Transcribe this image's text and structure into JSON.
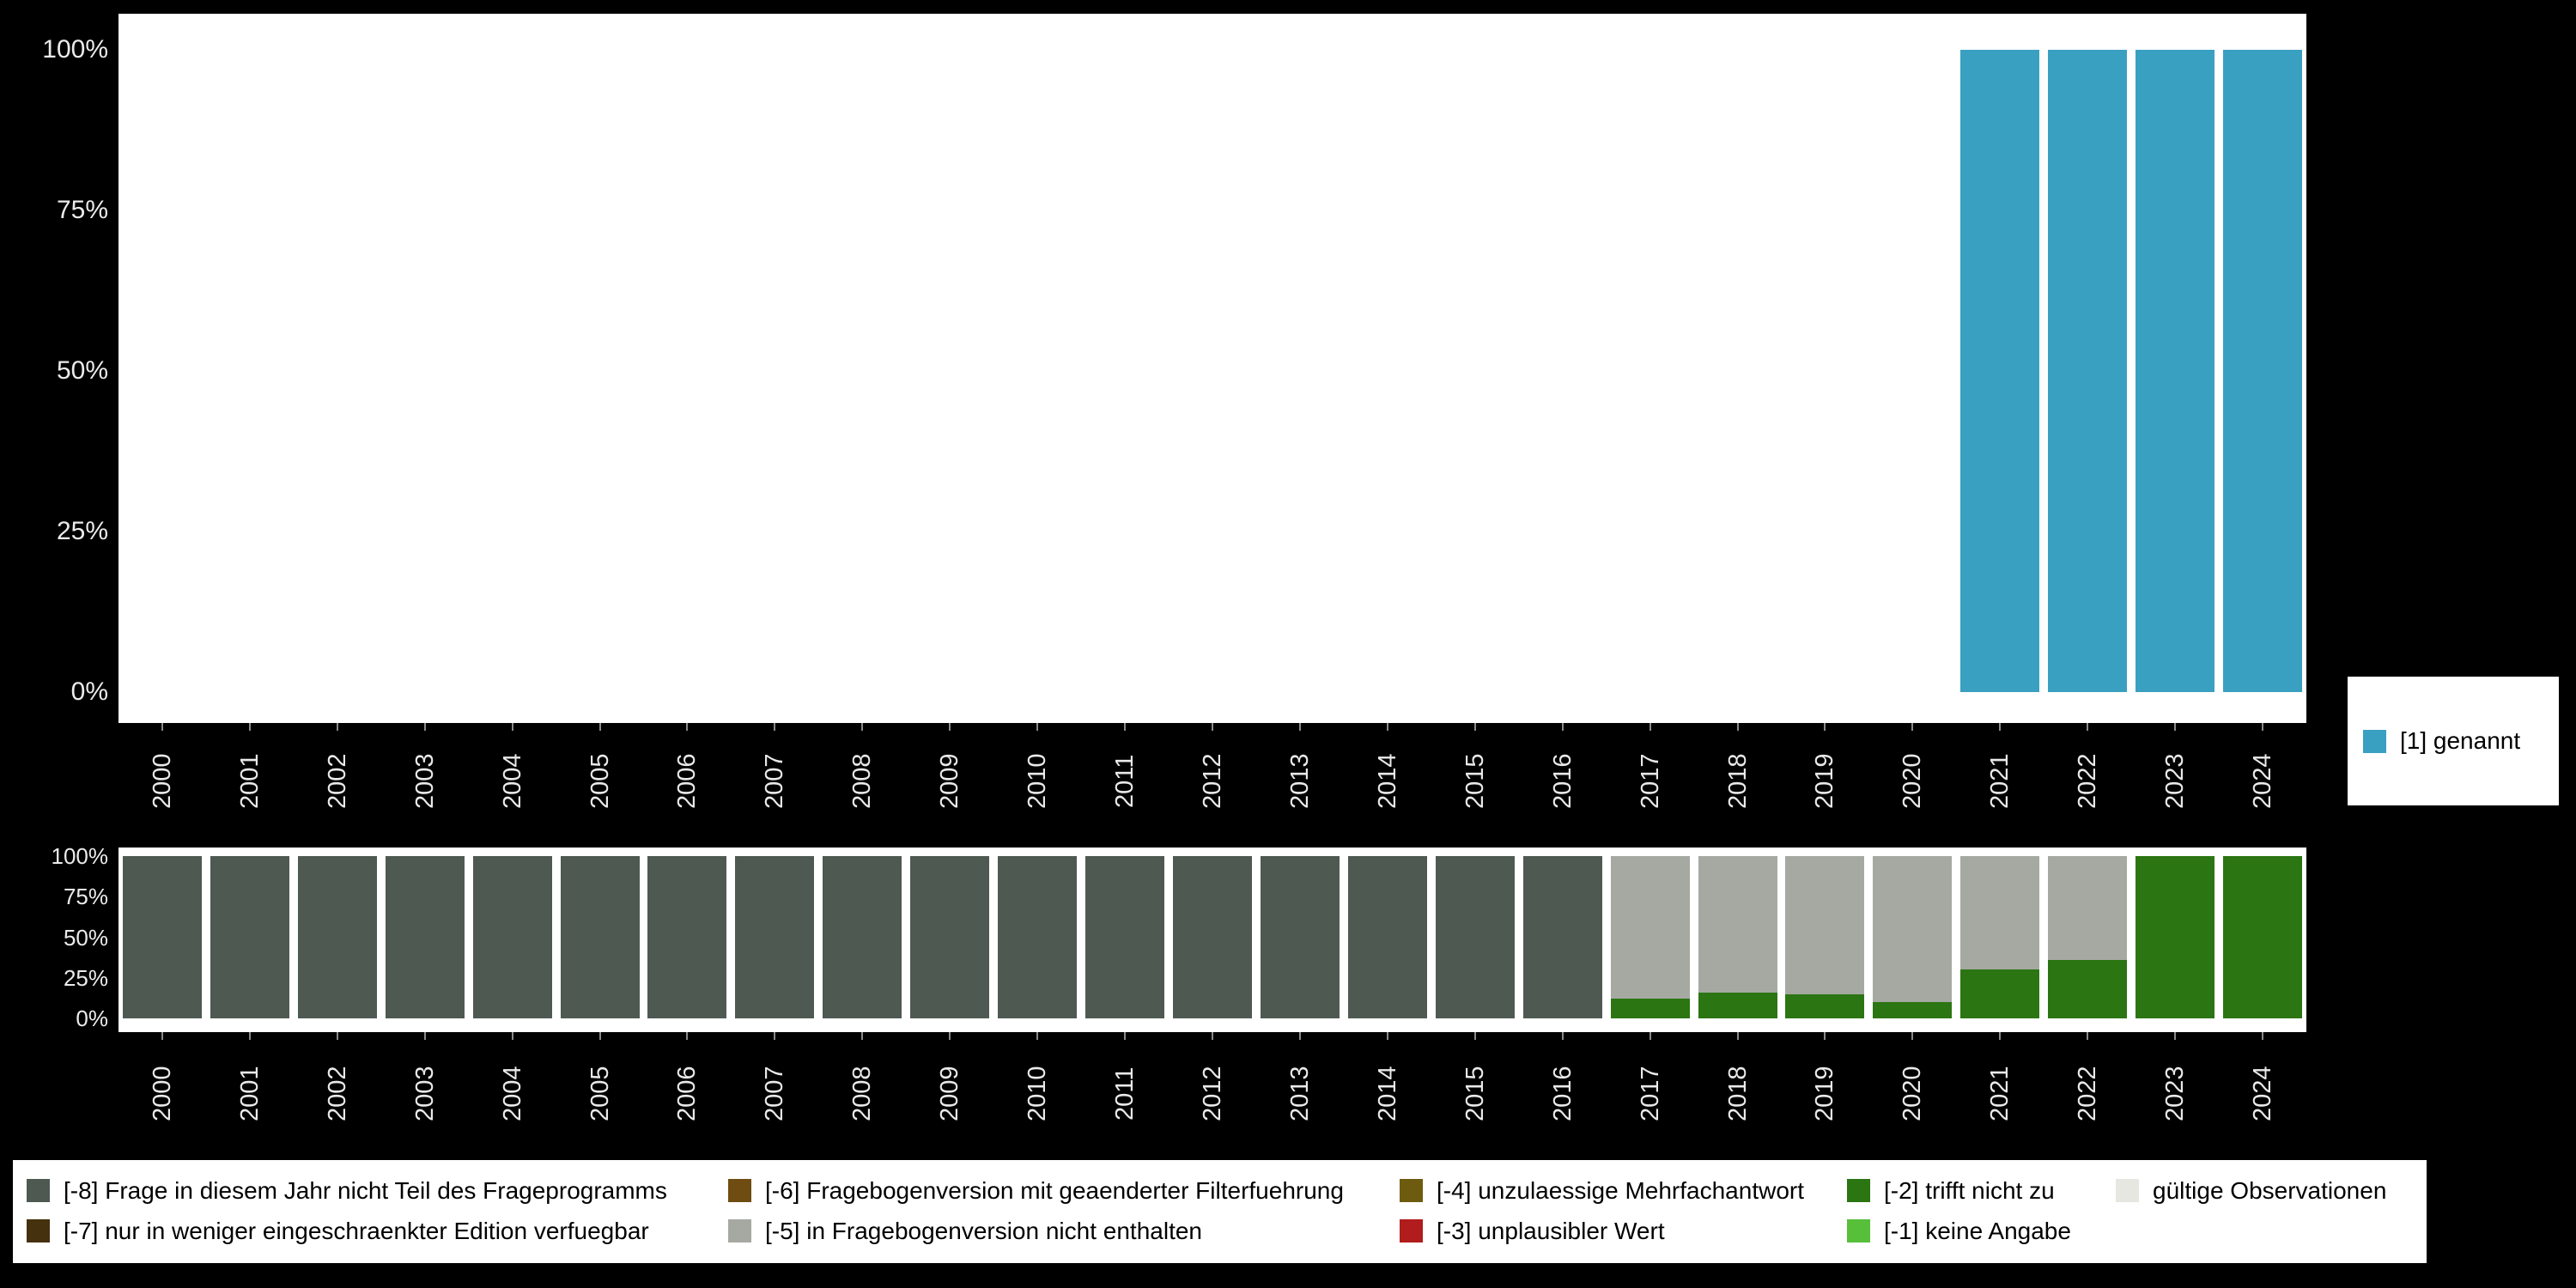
{
  "colors": {
    "background": "#000000",
    "panel": "#ffffff",
    "axis_text": "#ebebeb",
    "legend_bg": "#ffffff",
    "legend_text": "#000000",
    "genannt": "#3AA0C2",
    "m8": "#4E5952",
    "m7": "#45310E",
    "m6": "#6F4C12",
    "m5": "#A6A9A2",
    "m4": "#6D5C10",
    "m3": "#B11C1C",
    "m2": "#2B7513",
    "m1": "#57BF3A",
    "valid": "#E7E7E2"
  },
  "chart_data": [
    {
      "id": "top-percent-genannt",
      "type": "bar",
      "stacked": true,
      "title": "",
      "xlabel": "",
      "ylabel": "",
      "grid": false,
      "ylim": [
        0,
        100
      ],
      "y_ticks": [
        "0%",
        "25%",
        "50%",
        "75%",
        "100%"
      ],
      "legend_position": "right",
      "categories": [
        "2000",
        "2001",
        "2002",
        "2003",
        "2004",
        "2005",
        "2006",
        "2007",
        "2008",
        "2009",
        "2010",
        "2011",
        "2012",
        "2013",
        "2014",
        "2015",
        "2016",
        "2017",
        "2018",
        "2019",
        "2020",
        "2021",
        "2022",
        "2023",
        "2024"
      ],
      "series": [
        {
          "name": "[1] genannt",
          "color_key": "genannt",
          "values": [
            0,
            0,
            0,
            0,
            0,
            0,
            0,
            0,
            0,
            0,
            0,
            0,
            0,
            0,
            0,
            0,
            0,
            0,
            0,
            0,
            0,
            100,
            100,
            100,
            100
          ]
        }
      ]
    },
    {
      "id": "bottom-missings",
      "type": "bar",
      "stacked": true,
      "title": "",
      "xlabel": "",
      "ylabel": "",
      "grid": false,
      "ylim": [
        0,
        100
      ],
      "y_ticks": [
        "0%",
        "25%",
        "50%",
        "75%",
        "100%"
      ],
      "legend_position": "bottom",
      "categories": [
        "2000",
        "2001",
        "2002",
        "2003",
        "2004",
        "2005",
        "2006",
        "2007",
        "2008",
        "2009",
        "2010",
        "2011",
        "2012",
        "2013",
        "2014",
        "2015",
        "2016",
        "2017",
        "2018",
        "2019",
        "2020",
        "2021",
        "2022",
        "2023",
        "2024"
      ],
      "series": [
        {
          "name": "[-2] trifft nicht zu",
          "color_key": "m2",
          "values": [
            0,
            0,
            0,
            0,
            0,
            0,
            0,
            0,
            0,
            0,
            0,
            0,
            0,
            0,
            0,
            0,
            0,
            12,
            16,
            15,
            10,
            30,
            36,
            100,
            100
          ]
        },
        {
          "name": "[-5] in Fragebogenversion nicht enthalten",
          "color_key": "m5",
          "values": [
            0,
            0,
            0,
            0,
            0,
            0,
            0,
            0,
            0,
            0,
            0,
            0,
            0,
            0,
            0,
            0,
            0,
            88,
            84,
            85,
            90,
            70,
            64,
            0,
            0
          ]
        },
        {
          "name": "[-8] Frage in diesem Jahr nicht Teil des Frageprogramms",
          "color_key": "m8",
          "values": [
            100,
            100,
            100,
            100,
            100,
            100,
            100,
            100,
            100,
            100,
            100,
            100,
            100,
            100,
            100,
            100,
            100,
            0,
            0,
            0,
            0,
            0,
            0,
            0,
            0
          ]
        }
      ]
    }
  ],
  "legend_right": {
    "items": [
      {
        "label": "[1] genannt",
        "color_key": "genannt"
      }
    ]
  },
  "legend_bottom": {
    "columns": [
      {
        "items": [
          {
            "label": "[-8] Frage in diesem Jahr nicht Teil des Frageprogramms",
            "color_key": "m8"
          },
          {
            "label": "[-7] nur in weniger eingeschraenkter Edition verfuegbar",
            "color_key": "m7"
          }
        ]
      },
      {
        "items": [
          {
            "label": "[-6] Fragebogenversion mit geaenderter Filterfuehrung",
            "color_key": "m6"
          },
          {
            "label": "[-5] in Fragebogenversion nicht enthalten",
            "color_key": "m5"
          }
        ]
      },
      {
        "items": [
          {
            "label": "[-4] unzulaessige Mehrfachantwort",
            "color_key": "m4"
          },
          {
            "label": "[-3] unplausibler Wert",
            "color_key": "m3"
          }
        ]
      },
      {
        "items": [
          {
            "label": "[-2] trifft nicht zu",
            "color_key": "m2"
          },
          {
            "label": "[-1] keine Angabe",
            "color_key": "m1"
          }
        ]
      },
      {
        "items": [
          {
            "label": "gültige Observationen",
            "color_key": "valid"
          }
        ]
      }
    ]
  }
}
